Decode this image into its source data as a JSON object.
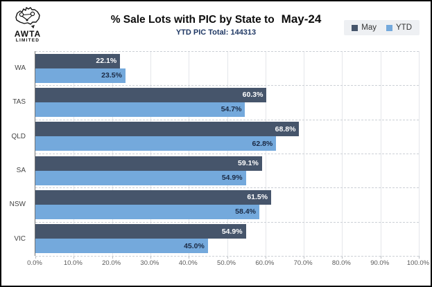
{
  "logo": {
    "line1": "AWTA",
    "line2": "LIMITED"
  },
  "header": {
    "title": "% Sale Lots with PIC by State to",
    "title_period": "May-24",
    "subtitle": "YTD PIC Total: 144313"
  },
  "legend": {
    "items": [
      {
        "label": "May",
        "color": "#46556B"
      },
      {
        "label": "YTD",
        "color": "#74A9DC"
      }
    ]
  },
  "colors": {
    "may": "#46556B",
    "ytd": "#74A9DC",
    "ytd_label": "#1B2A44",
    "subtitle": "#1F3864",
    "grid": "#E4E6EA",
    "hgrid": "#CBCFD5",
    "axis": "#737373"
  },
  "chart_data": {
    "type": "bar",
    "orientation": "horizontal",
    "title": "% Sale Lots with PIC by State to May-24",
    "subtitle": "YTD PIC Total: 144313",
    "categories": [
      "WA",
      "TAS",
      "QLD",
      "SA",
      "NSW",
      "VIC"
    ],
    "series": [
      {
        "name": "May",
        "values": [
          22.1,
          60.3,
          68.8,
          59.1,
          61.5,
          54.9
        ]
      },
      {
        "name": "YTD",
        "values": [
          23.5,
          54.7,
          62.8,
          54.9,
          58.4,
          45.0
        ]
      }
    ],
    "value_suffix": "%",
    "value_decimals": 1,
    "xlim": [
      0,
      100
    ],
    "xticks": [
      "0.0%",
      "10.0%",
      "20.0%",
      "30.0%",
      "40.0%",
      "50.0%",
      "60.0%",
      "70.0%",
      "80.0%",
      "90.0%",
      "100.0%"
    ],
    "grid": true,
    "legend_position": "top-right"
  }
}
